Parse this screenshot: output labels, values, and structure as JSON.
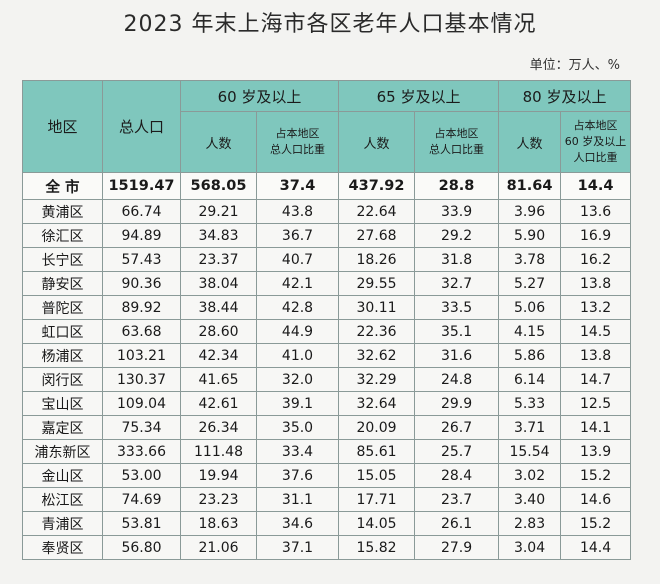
{
  "title": "2023 年末上海市各区老年人口基本情况",
  "unit": "单位：万人、%",
  "headers": {
    "district": "地区",
    "total_population": "总人口",
    "age60": "60 岁及以上",
    "age65": "65 岁及以上",
    "age80": "80 岁及以上",
    "count": "人数",
    "ratio_line1": "占本地区",
    "ratio_line2": "总人口比重",
    "ratio80_line1": "占本地区",
    "ratio80_line2": "60 岁及以上",
    "ratio80_line3": "人口比重"
  },
  "total_row": [
    "全 市",
    "1519.47",
    "568.05",
    "37.4",
    "437.92",
    "28.8",
    "81.64",
    "14.4"
  ],
  "rows": [
    [
      "黄浦区",
      "66.74",
      "29.21",
      "43.8",
      "22.64",
      "33.9",
      "3.96",
      "13.6"
    ],
    [
      "徐汇区",
      "94.89",
      "34.83",
      "36.7",
      "27.68",
      "29.2",
      "5.90",
      "16.9"
    ],
    [
      "长宁区",
      "57.43",
      "23.37",
      "40.7",
      "18.26",
      "31.8",
      "3.78",
      "16.2"
    ],
    [
      "静安区",
      "90.36",
      "38.04",
      "42.1",
      "29.55",
      "32.7",
      "5.27",
      "13.8"
    ],
    [
      "普陀区",
      "89.92",
      "38.44",
      "42.8",
      "30.11",
      "33.5",
      "5.06",
      "13.2"
    ],
    [
      "虹口区",
      "63.68",
      "28.60",
      "44.9",
      "22.36",
      "35.1",
      "4.15",
      "14.5"
    ],
    [
      "杨浦区",
      "103.21",
      "42.34",
      "41.0",
      "32.62",
      "31.6",
      "5.86",
      "13.8"
    ],
    [
      "闵行区",
      "130.37",
      "41.65",
      "32.0",
      "32.29",
      "24.8",
      "6.14",
      "14.7"
    ],
    [
      "宝山区",
      "109.04",
      "42.61",
      "39.1",
      "32.64",
      "29.9",
      "5.33",
      "12.5"
    ],
    [
      "嘉定区",
      "75.34",
      "26.34",
      "35.0",
      "20.09",
      "26.7",
      "3.71",
      "14.1"
    ],
    [
      "浦东新区",
      "333.66",
      "111.48",
      "33.4",
      "85.61",
      "25.7",
      "15.54",
      "13.9"
    ],
    [
      "金山区",
      "53.00",
      "19.94",
      "37.6",
      "15.05",
      "28.4",
      "3.02",
      "15.2"
    ],
    [
      "松江区",
      "74.69",
      "23.23",
      "31.1",
      "17.71",
      "23.7",
      "3.40",
      "14.6"
    ],
    [
      "青浦区",
      "53.81",
      "18.63",
      "34.6",
      "14.05",
      "26.1",
      "2.83",
      "15.2"
    ],
    [
      "奉贤区",
      "56.80",
      "21.06",
      "37.1",
      "15.82",
      "27.9",
      "3.04",
      "14.4"
    ]
  ]
}
